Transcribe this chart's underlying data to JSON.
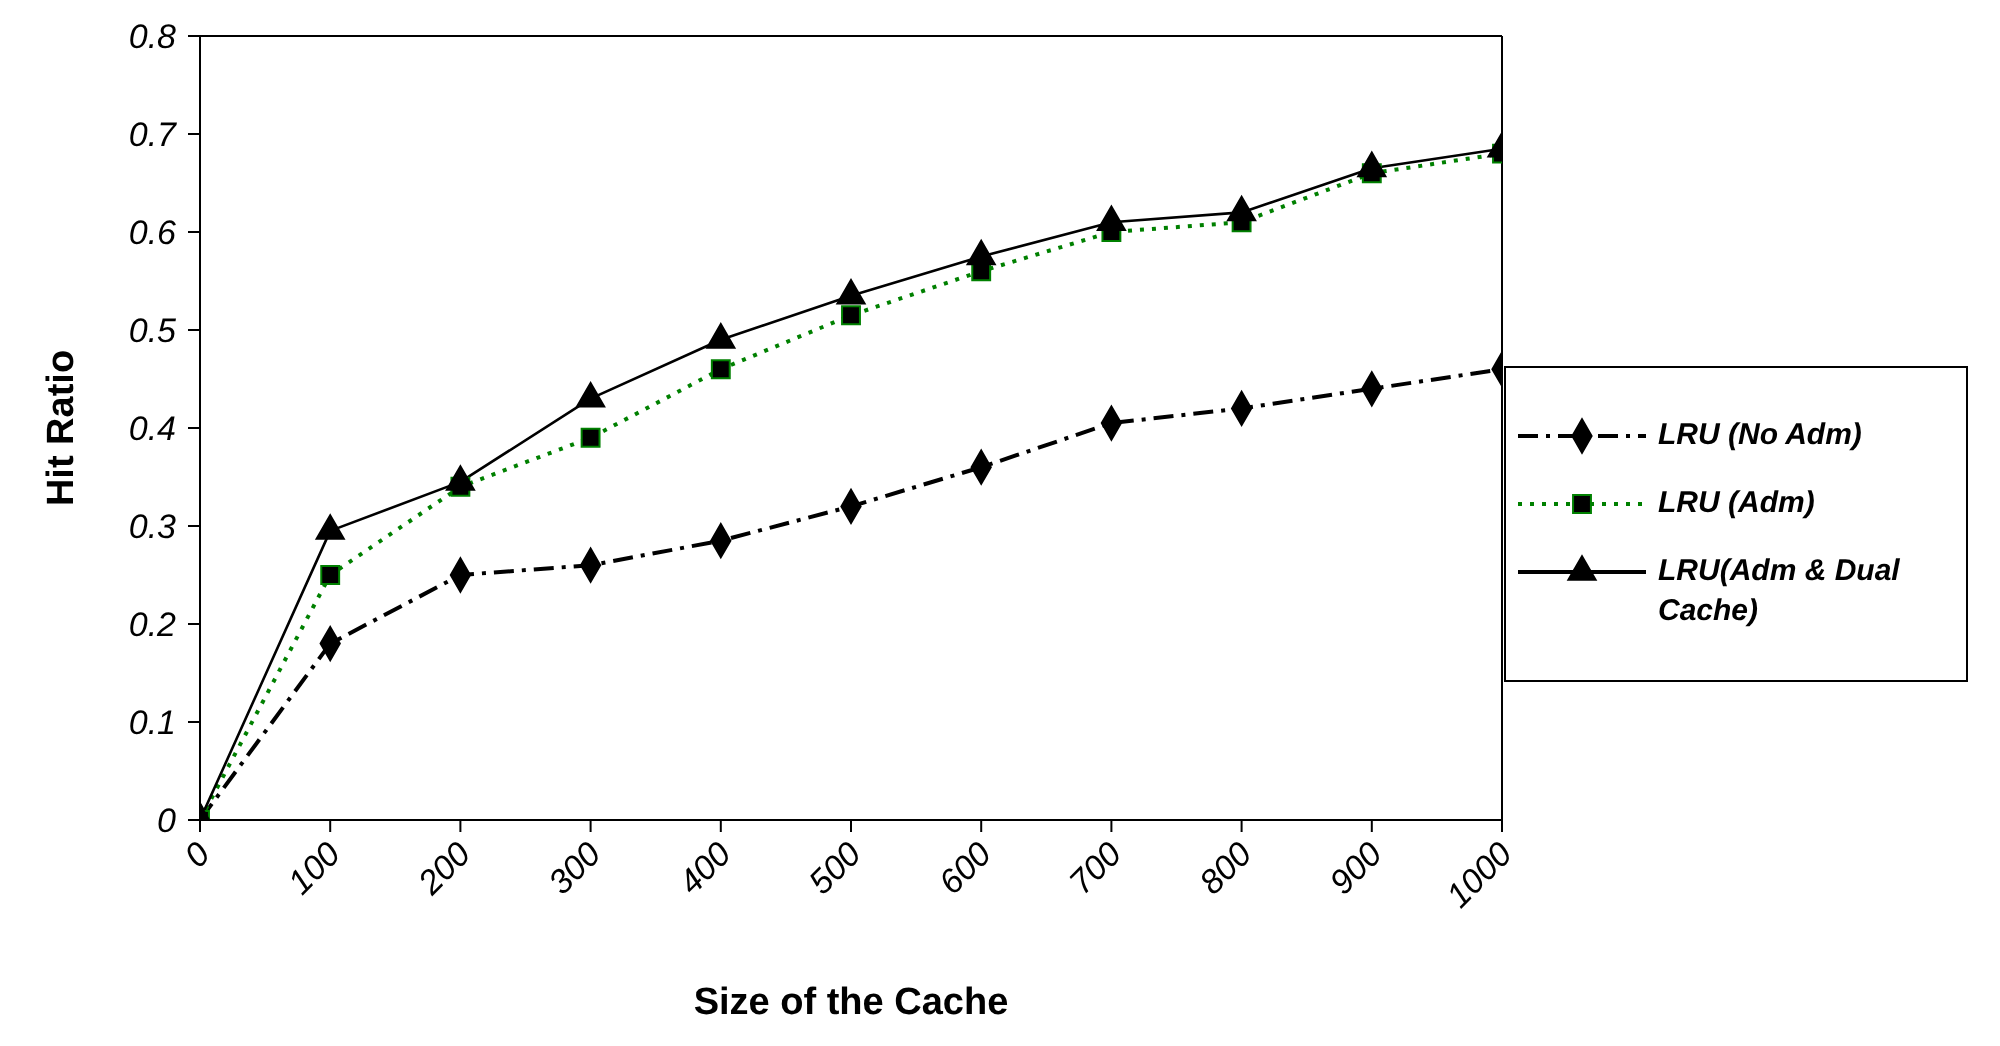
{
  "chart_data": {
    "type": "line",
    "xlabel": "Size of the Cache",
    "ylabel": "Hit Ratio",
    "x": [
      0,
      100,
      200,
      300,
      400,
      500,
      600,
      700,
      800,
      900,
      1000
    ],
    "xlim": [
      0,
      1000
    ],
    "xticks": [
      0,
      100,
      200,
      300,
      400,
      500,
      600,
      700,
      800,
      900,
      1000
    ],
    "ylim": [
      0,
      0.8
    ],
    "yticks": [
      0,
      0.1,
      0.2,
      0.3,
      0.4,
      0.5,
      0.6,
      0.7,
      0.8
    ],
    "grid": false,
    "legend": "right",
    "series": [
      {
        "name": "LRU (No Adm)",
        "color": "#000000",
        "marker": "diamond",
        "line_style": "dashed",
        "values": [
          0,
          0.18,
          0.25,
          0.26,
          0.285,
          0.32,
          0.36,
          0.405,
          0.42,
          0.44,
          0.46
        ]
      },
      {
        "name": "LRU (Adm)",
        "color": "#008000",
        "marker": "square",
        "line_style": "dotted",
        "values": [
          0,
          0.25,
          0.34,
          0.39,
          0.46,
          0.515,
          0.56,
          0.6,
          0.61,
          0.66,
          0.68
        ]
      },
      {
        "name": "LRU(Adm & Dual Cache)",
        "color": "#000000",
        "marker": "triangle",
        "line_style": "solid",
        "values": [
          0,
          0.295,
          0.345,
          0.43,
          0.49,
          0.535,
          0.575,
          0.61,
          0.62,
          0.665,
          0.685
        ]
      }
    ]
  }
}
